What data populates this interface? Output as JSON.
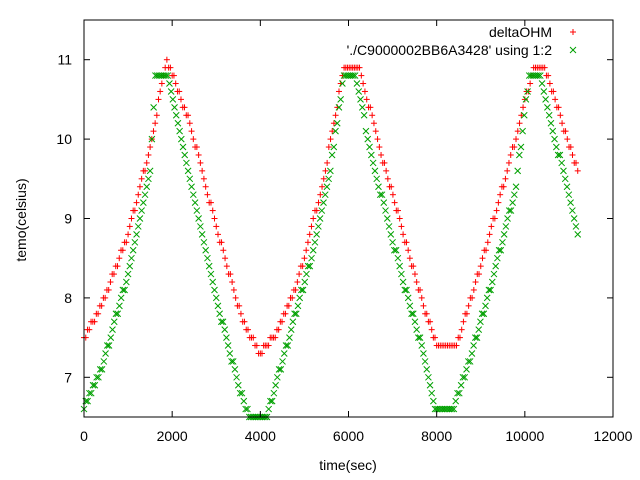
{
  "chart_data": {
    "type": "scatter",
    "title": "",
    "xlabel": "time(sec)",
    "ylabel": "temo(celsius)",
    "xlim": [
      0,
      12000
    ],
    "ylim": [
      6.5,
      11.5
    ],
    "xticks": [
      0,
      2000,
      4000,
      6000,
      8000,
      10000,
      12000
    ],
    "xtick_labels": [
      "0",
      "2000",
      "4000",
      "6000",
      "8000",
      "10000",
      "12000"
    ],
    "yticks": [
      7,
      8,
      9,
      10,
      11
    ],
    "ytick_labels": [
      "7",
      "8",
      "9",
      "10",
      "11"
    ],
    "grid": false,
    "legend_position": "top-right",
    "series": [
      {
        "name": "deltaOHM",
        "marker": "plus",
        "color": "#ff0000",
        "keypoints": [
          [
            0,
            7.5
          ],
          [
            400,
            7.9
          ],
          [
            1000,
            8.8
          ],
          [
            1500,
            9.9
          ],
          [
            1880,
            11.0
          ],
          [
            2400,
            10.2
          ],
          [
            3000,
            8.9
          ],
          [
            3600,
            7.7
          ],
          [
            4000,
            7.3
          ],
          [
            4300,
            7.5
          ],
          [
            4800,
            8.1
          ],
          [
            5400,
            9.4
          ],
          [
            5900,
            10.9
          ],
          [
            6250,
            10.9
          ],
          [
            6700,
            9.9
          ],
          [
            7200,
            8.9
          ],
          [
            7700,
            7.9
          ],
          [
            8000,
            7.4
          ],
          [
            8450,
            7.4
          ],
          [
            9000,
            8.4
          ],
          [
            9600,
            9.6
          ],
          [
            10200,
            10.9
          ],
          [
            10450,
            10.9
          ],
          [
            11200,
            9.6
          ]
        ]
      },
      {
        "name": "'./C9000002BB6A3428' using 1:2",
        "marker": "cross",
        "color": "#00a000",
        "keypoints": [
          [
            0,
            6.6
          ],
          [
            450,
            7.2
          ],
          [
            1000,
            8.3
          ],
          [
            1500,
            9.6
          ],
          [
            1620,
            10.8
          ],
          [
            1900,
            10.8
          ],
          [
            2400,
            9.5
          ],
          [
            3000,
            8.0
          ],
          [
            3500,
            6.9
          ],
          [
            3750,
            6.5
          ],
          [
            4150,
            6.5
          ],
          [
            4700,
            7.6
          ],
          [
            5200,
            8.6
          ],
          [
            5550,
            9.5
          ],
          [
            5900,
            10.8
          ],
          [
            6150,
            10.8
          ],
          [
            6600,
            9.6
          ],
          [
            7200,
            8.3
          ],
          [
            7700,
            7.3
          ],
          [
            8000,
            6.55
          ],
          [
            8350,
            6.55
          ],
          [
            8800,
            7.3
          ],
          [
            9300,
            8.3
          ],
          [
            9800,
            9.4
          ],
          [
            10100,
            10.8
          ],
          [
            10350,
            10.8
          ],
          [
            11200,
            8.8
          ]
        ]
      }
    ]
  }
}
